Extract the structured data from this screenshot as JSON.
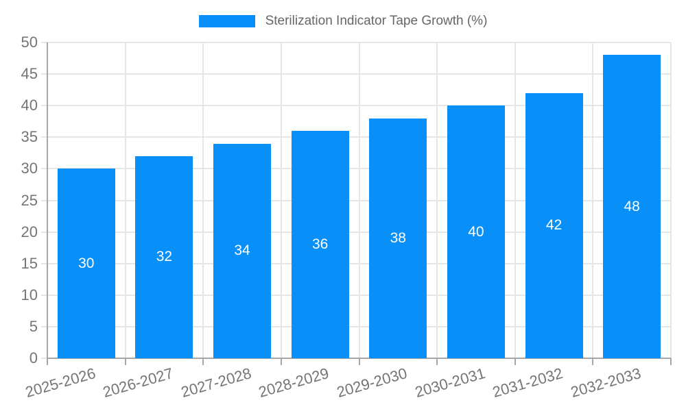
{
  "legend": {
    "label": "Sterilization Indicator Tape Growth (%)"
  },
  "colors": {
    "background": "#ffffff",
    "bar": "#0990f8",
    "grid": "#e6e6e6",
    "axis_line": "#a6a6a6",
    "axis_text": "#757575",
    "legend_text": "#666666",
    "value_text": "#ffffff"
  },
  "chart_data": {
    "type": "bar",
    "title": "Sterilization Indicator Tape Growth (%)",
    "series_name": "Sterilization Indicator Tape Growth (%)",
    "categories": [
      "2025-2026",
      "2026-2027",
      "2027-2028",
      "2028-2029",
      "2029-2030",
      "2030-2031",
      "2031-2032",
      "2032-2033"
    ],
    "values": [
      30,
      32,
      34,
      36,
      38,
      40,
      42,
      48
    ],
    "xlabel": "",
    "ylabel": "",
    "ylim": [
      0,
      50
    ],
    "yticks": [
      0,
      5,
      10,
      15,
      20,
      25,
      30,
      35,
      40,
      45,
      50
    ],
    "grid": true,
    "legend_position": "top-center",
    "value_label_position": "inside-center",
    "x_label_rotation_deg": -16
  }
}
